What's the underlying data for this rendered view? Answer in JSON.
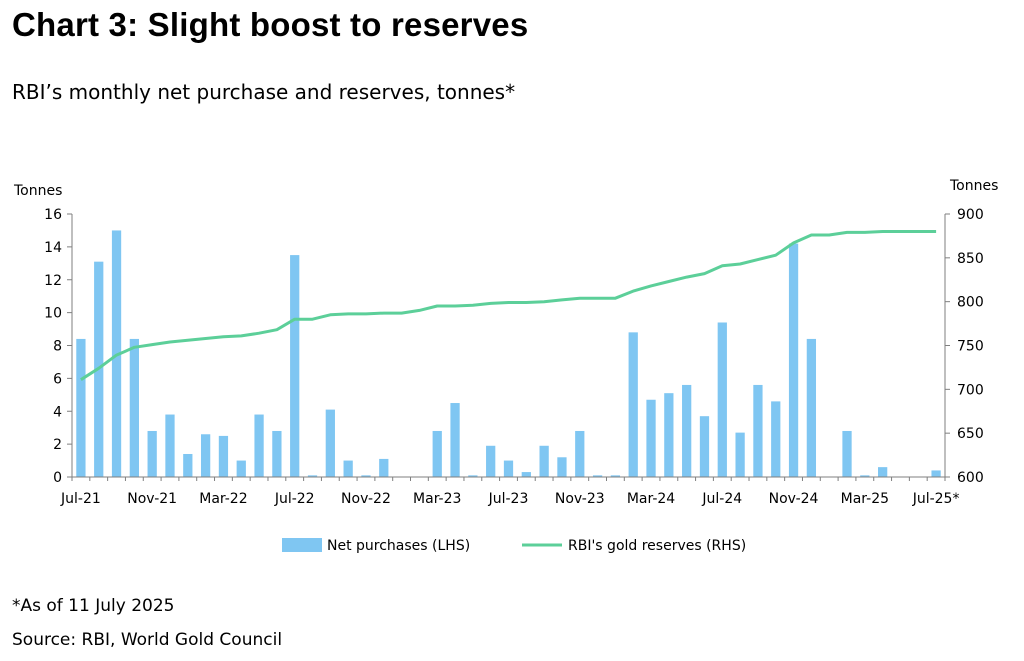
{
  "title": "Chart 3: Slight boost to reserves",
  "subtitle": "RBI’s monthly net purchase and reserves, tonnes*",
  "footnote": "*As of 11 July 2025",
  "source": "Source: RBI, World Gold Council",
  "colors": {
    "bars": "#7fc6f2",
    "line": "#5ccf99",
    "axis": "#7f7f7f"
  },
  "chart_data": {
    "type": "bar",
    "left_axis": {
      "label": "Tonnes",
      "ylim": [
        0,
        16
      ],
      "ticks": [
        0,
        2,
        4,
        6,
        8,
        10,
        12,
        14,
        16
      ]
    },
    "right_axis": {
      "label": "Tonnes",
      "ylim": [
        600,
        900
      ],
      "ticks": [
        600,
        650,
        700,
        750,
        800,
        850,
        900
      ]
    },
    "x_tick_labels": [
      "Jul-21",
      "Nov-21",
      "Mar-22",
      "Jul-22",
      "Nov-22",
      "Mar-23",
      "Jul-23",
      "Nov-23",
      "Mar-24",
      "Jul-24",
      "Nov-24",
      "Mar-25",
      "Jul-25*"
    ],
    "x_tick_every": 4,
    "categories": [
      "Jul-21",
      "Aug-21",
      "Sep-21",
      "Oct-21",
      "Nov-21",
      "Dec-21",
      "Jan-22",
      "Feb-22",
      "Mar-22",
      "Apr-22",
      "May-22",
      "Jun-22",
      "Jul-22",
      "Aug-22",
      "Sep-22",
      "Oct-22",
      "Nov-22",
      "Dec-22",
      "Jan-23",
      "Feb-23",
      "Mar-23",
      "Apr-23",
      "May-23",
      "Jun-23",
      "Jul-23",
      "Aug-23",
      "Sep-23",
      "Oct-23",
      "Nov-23",
      "Dec-23",
      "Jan-24",
      "Feb-24",
      "Mar-24",
      "Apr-24",
      "May-24",
      "Jun-24",
      "Jul-24",
      "Aug-24",
      "Sep-24",
      "Oct-24",
      "Nov-24",
      "Dec-24",
      "Jan-25",
      "Feb-25",
      "Mar-25",
      "Apr-25",
      "May-25",
      "Jun-25",
      "Jul-25"
    ],
    "series": [
      {
        "name": "Net purchases (LHS)",
        "type": "bar",
        "axis": "left",
        "values": [
          8.4,
          13.1,
          15.0,
          8.4,
          2.8,
          3.8,
          1.4,
          2.6,
          2.5,
          1.0,
          3.8,
          2.8,
          13.5,
          0.1,
          4.1,
          1.0,
          0.1,
          1.1,
          0,
          0,
          2.8,
          4.5,
          0.1,
          1.9,
          1.0,
          0.3,
          1.9,
          1.2,
          2.8,
          0.1,
          0.1,
          8.8,
          4.7,
          5.1,
          5.6,
          3.7,
          9.4,
          2.7,
          5.6,
          4.6,
          14.2,
          8.4,
          0,
          2.8,
          0.1,
          0.6,
          0,
          0,
          0.4
        ]
      },
      {
        "name": "RBI's gold reserves (RHS)",
        "type": "line",
        "axis": "right",
        "values": [
          711,
          724,
          739,
          748,
          751,
          754,
          756,
          758,
          760,
          761,
          764,
          768,
          780,
          780,
          785,
          786,
          786,
          787,
          787,
          790,
          795,
          795,
          796,
          798,
          799,
          799,
          800,
          802,
          804,
          804,
          804,
          812,
          818,
          823,
          828,
          832,
          841,
          843,
          848,
          853,
          867,
          876,
          876,
          879,
          879,
          880,
          880,
          880,
          880
        ]
      }
    ],
    "legend_position": "bottom",
    "grid": false
  }
}
